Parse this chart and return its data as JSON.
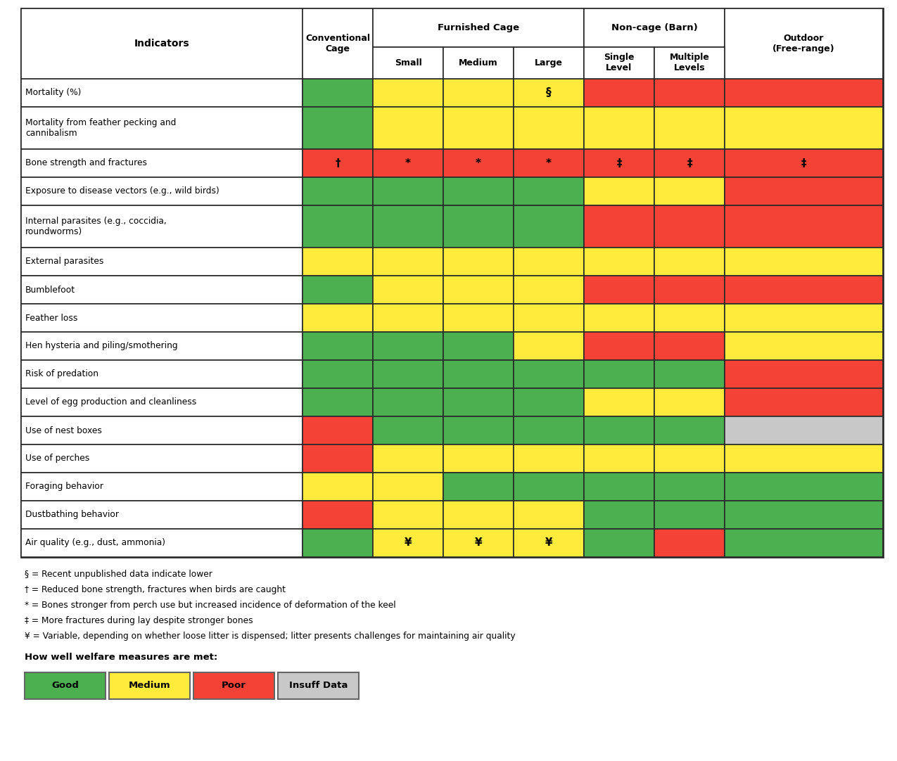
{
  "indicators": [
    "Mortality (%)",
    "Mortality from feather pecking and\ncannibalism",
    "Bone strength and fractures",
    "Exposure to disease vectors (e.g., wild birds)",
    "Internal parasites (e.g., coccidia,\nroundworms)",
    "External parasites",
    "Bumblefoot",
    "Feather loss",
    "Hen hysteria and piling/smothering",
    "Risk of predation",
    "Level of egg production and cleanliness",
    "Use of nest boxes",
    "Use of perches",
    "Foraging behavior",
    "Dustbathing behavior",
    "Air quality (e.g., dust, ammonia)"
  ],
  "cell_data": [
    [
      "G",
      "Y",
      "Y",
      "Y",
      "R",
      "R",
      "R"
    ],
    [
      "G",
      "Y",
      "Y",
      "Y",
      "Y",
      "Y",
      "Y"
    ],
    [
      "R",
      "R",
      "R",
      "R",
      "R",
      "R",
      "R"
    ],
    [
      "G",
      "G",
      "G",
      "G",
      "Y",
      "Y",
      "R"
    ],
    [
      "G",
      "G",
      "G",
      "G",
      "R",
      "R",
      "R"
    ],
    [
      "Y",
      "Y",
      "Y",
      "Y",
      "Y",
      "Y",
      "Y"
    ],
    [
      "G",
      "Y",
      "Y",
      "Y",
      "R",
      "R",
      "R"
    ],
    [
      "Y",
      "Y",
      "Y",
      "Y",
      "Y",
      "Y",
      "Y"
    ],
    [
      "G",
      "G",
      "G",
      "Y",
      "R",
      "R",
      "Y"
    ],
    [
      "G",
      "G",
      "G",
      "G",
      "G",
      "G",
      "R"
    ],
    [
      "G",
      "G",
      "G",
      "G",
      "Y",
      "Y",
      "R"
    ],
    [
      "R",
      "G",
      "G",
      "G",
      "G",
      "G",
      "W"
    ],
    [
      "R",
      "Y",
      "Y",
      "Y",
      "Y",
      "Y",
      "Y"
    ],
    [
      "Y",
      "Y",
      "G",
      "G",
      "G",
      "G",
      "G"
    ],
    [
      "R",
      "Y",
      "Y",
      "Y",
      "G",
      "G",
      "G"
    ],
    [
      "G",
      "Y",
      "Y",
      "Y",
      "G",
      "R",
      "G"
    ]
  ],
  "annot_map": {
    "0,3": "§",
    "2,0": "†",
    "2,1": "*",
    "2,2": "*",
    "2,3": "*",
    "2,4": "‡",
    "2,5": "‡",
    "2,6": "‡",
    "15,1": "¥",
    "15,2": "¥",
    "15,3": "¥"
  },
  "footnotes": [
    "§ = Recent unpublished data indicate lower",
    "† = Reduced bone strength, fractures when birds are caught",
    "* = Bones stronger from perch use but increased incidence of deformation of the keel",
    "‡ = More fractures during lay despite stronger bones",
    "¥ = Variable, depending on whether loose litter is dispensed; litter presents challenges for maintaining air quality"
  ],
  "legend_label": "How well welfare measures are met:",
  "legend_items": [
    {
      "label": "Good",
      "color": "#4caf50"
    },
    {
      "label": "Medium",
      "color": "#ffeb3b"
    },
    {
      "label": "Poor",
      "color": "#f44336"
    },
    {
      "label": "Insuff Data",
      "color": "#c8c8c8"
    }
  ],
  "green": "#4caf50",
  "yellow": "#ffeb3b",
  "red": "#f44336",
  "gray": "#c8c8c8",
  "border_color": "#2a2a2a",
  "background": "#ffffff"
}
